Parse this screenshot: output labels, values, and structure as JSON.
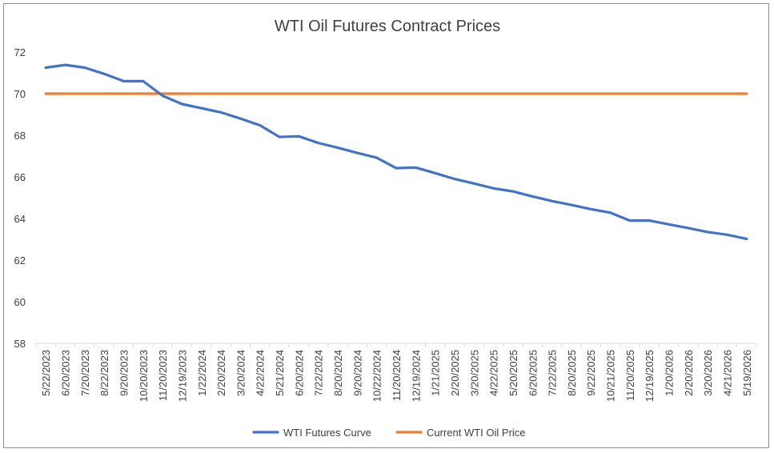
{
  "chart_data": {
    "type": "line",
    "title": "WTI Oil Futures Contract Prices",
    "xlabel": "",
    "ylabel": "",
    "ylim": [
      58,
      72
    ],
    "yticks": [
      58,
      60,
      62,
      64,
      66,
      68,
      70,
      72
    ],
    "grid": false,
    "legend_position": "bottom",
    "categories": [
      "5/22/2023",
      "6/20/2023",
      "7/20/2023",
      "8/22/2023",
      "9/20/2023",
      "10/20/2023",
      "11/20/2023",
      "12/19/2023",
      "1/22/2024",
      "2/20/2024",
      "3/20/2024",
      "4/22/2024",
      "5/21/2024",
      "6/20/2024",
      "7/22/2024",
      "8/20/2024",
      "9/20/2024",
      "10/22/2024",
      "11/20/2024",
      "12/19/2024",
      "1/21/2025",
      "2/20/2025",
      "3/20/2025",
      "4/22/2025",
      "5/20/2025",
      "6/20/2025",
      "7/22/2025",
      "8/20/2025",
      "9/22/2025",
      "10/21/2025",
      "11/20/2025",
      "12/19/2025",
      "1/20/2026",
      "2/20/2026",
      "3/20/2026",
      "4/21/2026",
      "5/19/2026"
    ],
    "series": [
      {
        "name": "WTI Futures Curve",
        "color": "#4472c4",
        "values": [
          71.25,
          71.38,
          71.25,
          70.95,
          70.6,
          70.6,
          69.9,
          69.5,
          69.3,
          69.1,
          68.8,
          68.48,
          67.92,
          67.95,
          67.63,
          67.4,
          67.15,
          66.92,
          66.42,
          66.45,
          66.18,
          65.9,
          65.68,
          65.45,
          65.3,
          65.06,
          64.84,
          64.65,
          64.45,
          64.28,
          63.9,
          63.9,
          63.72,
          63.54,
          63.35,
          63.22,
          63.02
        ]
      },
      {
        "name": "Current WTI Oil Price",
        "color": "#ed7d31",
        "values": [
          70,
          70,
          70,
          70,
          70,
          70,
          70,
          70,
          70,
          70,
          70,
          70,
          70,
          70,
          70,
          70,
          70,
          70,
          70,
          70,
          70,
          70,
          70,
          70,
          70,
          70,
          70,
          70,
          70,
          70,
          70,
          70,
          70,
          70,
          70,
          70,
          70
        ]
      }
    ]
  }
}
